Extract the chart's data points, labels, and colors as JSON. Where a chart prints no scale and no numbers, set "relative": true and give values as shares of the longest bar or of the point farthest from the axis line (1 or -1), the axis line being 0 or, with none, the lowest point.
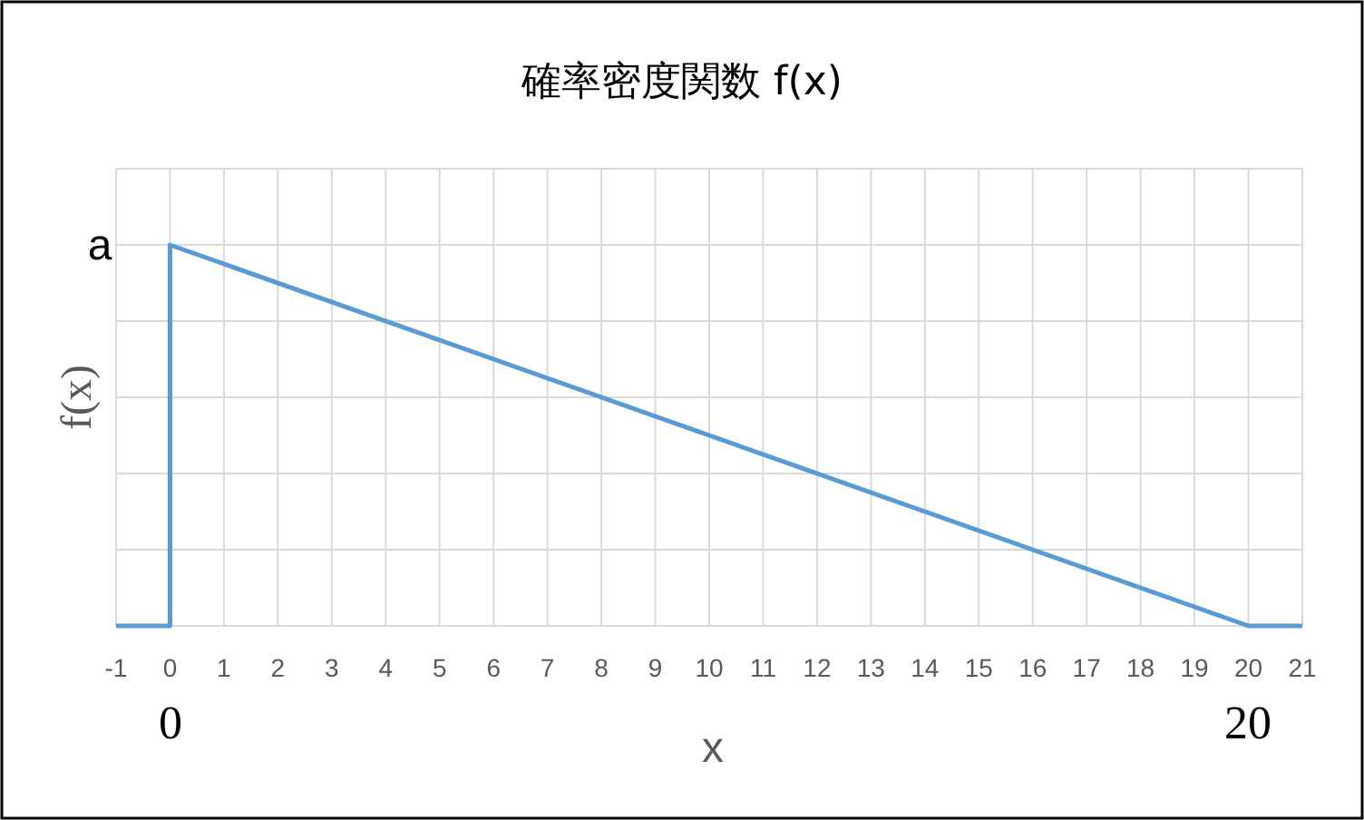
{
  "chart_data": {
    "type": "line",
    "title": "確率密度関数 f(x)",
    "xlabel": "x",
    "ylabel": "f(x)",
    "relative": true,
    "grid": true,
    "line_style": "solid",
    "x": [
      -1,
      0,
      0,
      20,
      21
    ],
    "series": [
      {
        "color": "#5b9bd5",
        "values": [
          0,
          0,
          1,
          0,
          0
        ]
      }
    ],
    "xlim": [
      -1,
      21
    ],
    "xticks": [
      -1,
      0,
      1,
      2,
      3,
      4,
      5,
      6,
      7,
      8,
      9,
      10,
      11,
      12,
      13,
      14,
      15,
      16,
      17,
      18,
      19,
      20,
      21
    ],
    "annotations": [
      "a",
      "0",
      "20"
    ]
  }
}
